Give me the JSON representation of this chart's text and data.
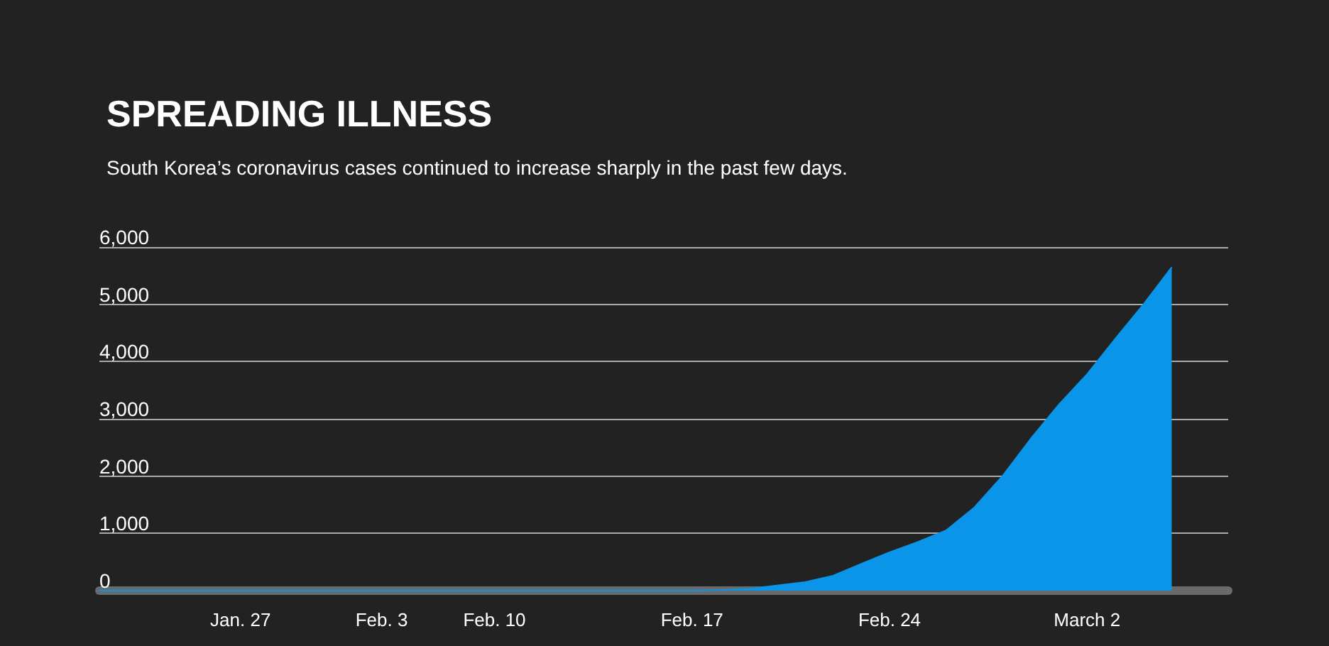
{
  "chart_data": {
    "type": "area",
    "title": "SPREADING ILLNESS",
    "subtitle": "South Korea’s coronavirus cases continued to increase sharply in the past few days.",
    "categories": [
      null,
      null,
      null,
      null,
      null,
      "Jan. 27",
      null,
      null,
      null,
      null,
      "Feb. 3",
      null,
      null,
      null,
      "Feb. 10",
      null,
      null,
      null,
      null,
      null,
      null,
      "Feb. 17",
      null,
      null,
      null,
      null,
      null,
      null,
      "Feb. 24",
      null,
      null,
      null,
      null,
      null,
      null,
      "March 2",
      null,
      null,
      null,
      null,
      null
    ],
    "values": [
      0,
      0,
      0,
      0,
      0,
      0,
      0,
      0,
      0,
      0,
      0,
      0,
      0,
      0,
      0,
      0,
      0,
      0,
      0,
      0,
      0,
      0,
      10,
      30,
      90,
      150,
      260,
      470,
      670,
      850,
      1050,
      1450,
      2000,
      2650,
      3250,
      3780,
      4400,
      5000,
      5650,
      null,
      null
    ],
    "color": "#0a95e8",
    "ylim": [
      0,
      6000
    ],
    "yticks": [
      0,
      {
        "value": 1000,
        "label": "1,000"
      },
      {
        "value": 2000,
        "label": "2,000"
      },
      {
        "value": 3000,
        "label": "3,000"
      },
      {
        "value": 4000,
        "label": "4,000"
      },
      {
        "value": 5000,
        "label": "5,000"
      },
      {
        "value": 6000,
        "label": "6,000"
      }
    ],
    "grid": "y",
    "marker": "none"
  }
}
